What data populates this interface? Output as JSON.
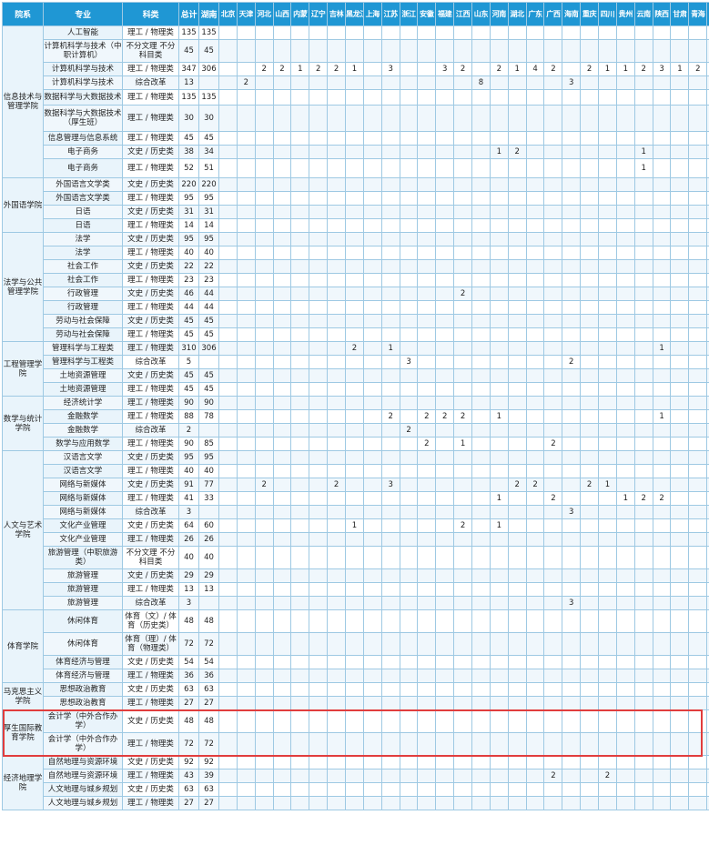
{
  "headers": {
    "college": "院系",
    "major": "专业",
    "subject": "科类",
    "total": "总计",
    "hunan": "湖南",
    "provinces": [
      "北京",
      "天津",
      "河北",
      "山西",
      "内蒙",
      "辽宁",
      "吉林",
      "黑龙江",
      "上海",
      "江苏",
      "浙江",
      "安徽",
      "福建",
      "江西",
      "山东",
      "河南",
      "湖北",
      "广东",
      "广西",
      "海南",
      "重庆",
      "四川",
      "贵州",
      "云南",
      "陕西",
      "甘肃",
      "青海",
      "宁夏"
    ]
  },
  "groups": [
    {
      "college": "信息技术与管理学院",
      "rows": [
        {
          "major": "人工智能",
          "subject": "理工 / 物理类",
          "total": "135",
          "hunan": "135",
          "h": 15,
          "p": {}
        },
        {
          "major": "计算机科学与技术（中职计算机）",
          "subject": "不分文理 不分科目类",
          "total": "45",
          "hunan": "45",
          "h": 25,
          "p": {}
        },
        {
          "major": "计算机科学与技术",
          "subject": "理工 / 物理类",
          "total": "347",
          "hunan": "306",
          "h": 15,
          "p": {
            "2": "2",
            "3": "2",
            "4": "1",
            "5": "2",
            "6": "2",
            "7": "1",
            "9": "3",
            "12": "3",
            "13": "2",
            "15": "2",
            "16": "1",
            "17": "4",
            "18": "2",
            "20": "2",
            "21": "1",
            "22": "1",
            "23": "2",
            "24": "3",
            "25": "1",
            "26": "2",
            "27": "2"
          }
        },
        {
          "major": "计算机科学与技术",
          "subject": "综合改革",
          "total": "13",
          "hunan": "",
          "h": 15,
          "p": {
            "1": "2",
            "14": "8",
            "19": "3"
          }
        },
        {
          "major": "数据科学与大数据技术",
          "subject": "理工 / 物理类",
          "total": "135",
          "hunan": "135",
          "h": 17,
          "p": {}
        },
        {
          "major": "数据科学与大数据技术（厚生班）",
          "subject": "理工 / 物理类",
          "total": "30",
          "hunan": "30",
          "h": 29,
          "p": {}
        },
        {
          "major": "信息管理与信息系统",
          "subject": "理工 / 物理类",
          "total": "45",
          "hunan": "45",
          "h": 15,
          "p": {}
        },
        {
          "major": "电子商务",
          "subject": "文史 / 历史类",
          "total": "38",
          "hunan": "34",
          "h": 15,
          "p": {
            "15": "1",
            "16": "2",
            "23": "1"
          }
        },
        {
          "major": "电子商务",
          "subject": "理工 / 物理类",
          "total": "52",
          "hunan": "51",
          "h": 21,
          "p": {
            "23": "1"
          }
        }
      ]
    },
    {
      "college": "外国语学院",
      "rows": [
        {
          "major": "外国语言文学类",
          "subject": "文史 / 历史类",
          "total": "220",
          "hunan": "220",
          "h": 15,
          "p": {}
        },
        {
          "major": "外国语言文学类",
          "subject": "理工 / 物理类",
          "total": "95",
          "hunan": "95",
          "h": 15,
          "p": {}
        },
        {
          "major": "日语",
          "subject": "文史 / 历史类",
          "total": "31",
          "hunan": "31",
          "h": 15,
          "p": {}
        },
        {
          "major": "日语",
          "subject": "理工 / 物理类",
          "total": "14",
          "hunan": "14",
          "h": 15,
          "p": {}
        }
      ]
    },
    {
      "college": "法学与公共管理学院",
      "rows": [
        {
          "major": "法学",
          "subject": "文史 / 历史类",
          "total": "95",
          "hunan": "95",
          "h": 15,
          "p": {}
        },
        {
          "major": "法学",
          "subject": "理工 / 物理类",
          "total": "40",
          "hunan": "40",
          "h": 15,
          "p": {}
        },
        {
          "major": "社会工作",
          "subject": "文史 / 历史类",
          "total": "22",
          "hunan": "22",
          "h": 15,
          "p": {}
        },
        {
          "major": "社会工作",
          "subject": "理工 / 物理类",
          "total": "23",
          "hunan": "23",
          "h": 15,
          "p": {}
        },
        {
          "major": "行政管理",
          "subject": "文史 / 历史类",
          "total": "46",
          "hunan": "44",
          "h": 15,
          "p": {
            "13": "2"
          }
        },
        {
          "major": "行政管理",
          "subject": "理工 / 物理类",
          "total": "44",
          "hunan": "44",
          "h": 15,
          "p": {}
        },
        {
          "major": "劳动与社会保障",
          "subject": "文史 / 历史类",
          "total": "45",
          "hunan": "45",
          "h": 15,
          "p": {}
        },
        {
          "major": "劳动与社会保障",
          "subject": "理工 / 物理类",
          "total": "45",
          "hunan": "45",
          "h": 15,
          "p": {}
        }
      ]
    },
    {
      "college": "工程管理学院",
      "rows": [
        {
          "major": "管理科学与工程类",
          "subject": "理工 / 物理类",
          "total": "310",
          "hunan": "306",
          "h": 15,
          "p": {
            "7": "2",
            "9": "1",
            "24": "1"
          }
        },
        {
          "major": "管理科学与工程类",
          "subject": "综合改革",
          "total": "5",
          "hunan": "",
          "h": 15,
          "p": {
            "10": "3",
            "19": "2"
          }
        },
        {
          "major": "土地资源管理",
          "subject": "文史 / 历史类",
          "total": "45",
          "hunan": "45",
          "h": 15,
          "p": {}
        },
        {
          "major": "土地资源管理",
          "subject": "理工 / 物理类",
          "total": "45",
          "hunan": "45",
          "h": 15,
          "p": {}
        }
      ]
    },
    {
      "college": "数学与统计学院",
      "rows": [
        {
          "major": "经济统计学",
          "subject": "理工 / 物理类",
          "total": "90",
          "hunan": "90",
          "h": 15,
          "p": {}
        },
        {
          "major": "金融数学",
          "subject": "理工 / 物理类",
          "total": "88",
          "hunan": "78",
          "h": 15,
          "p": {
            "9": "2",
            "11": "2",
            "12": "2",
            "13": "2",
            "15": "1",
            "24": "1"
          }
        },
        {
          "major": "金融数学",
          "subject": "综合改革",
          "total": "2",
          "hunan": "",
          "h": 15,
          "p": {
            "10": "2"
          }
        },
        {
          "major": "数学与应用数学",
          "subject": "理工 / 物理类",
          "total": "90",
          "hunan": "85",
          "h": 15,
          "p": {
            "11": "2",
            "13": "1",
            "18": "2"
          }
        }
      ]
    },
    {
      "college": "人文与艺术学院",
      "rows": [
        {
          "major": "汉语言文学",
          "subject": "文史 / 历史类",
          "total": "95",
          "hunan": "95",
          "h": 15,
          "p": {}
        },
        {
          "major": "汉语言文学",
          "subject": "理工 / 物理类",
          "total": "40",
          "hunan": "40",
          "h": 15,
          "p": {}
        },
        {
          "major": "网络与新媒体",
          "subject": "文史 / 历史类",
          "total": "91",
          "hunan": "77",
          "h": 15,
          "p": {
            "2": "2",
            "6": "2",
            "9": "3",
            "16": "2",
            "17": "2",
            "20": "2",
            "21": "1"
          }
        },
        {
          "major": "网络与新媒体",
          "subject": "理工 / 物理类",
          "total": "41",
          "hunan": "33",
          "h": 15,
          "p": {
            "15": "1",
            "18": "2",
            "22": "1",
            "23": "2",
            "24": "2"
          }
        },
        {
          "major": "网络与新媒体",
          "subject": "综合改革",
          "total": "3",
          "hunan": "",
          "h": 15,
          "p": {
            "19": "3"
          }
        },
        {
          "major": "文化产业管理",
          "subject": "文史 / 历史类",
          "total": "64",
          "hunan": "60",
          "h": 15,
          "p": {
            "7": "1",
            "13": "2",
            "15": "1"
          }
        },
        {
          "major": "文化产业管理",
          "subject": "理工 / 物理类",
          "total": "26",
          "hunan": "26",
          "h": 15,
          "p": {}
        },
        {
          "major": "旅游管理（中职旅游类）",
          "subject": "不分文理 不分科目类",
          "total": "40",
          "hunan": "40",
          "h": 25,
          "p": {}
        },
        {
          "major": "旅游管理",
          "subject": "文史 / 历史类",
          "total": "29",
          "hunan": "29",
          "h": 15,
          "p": {}
        },
        {
          "major": "旅游管理",
          "subject": "理工 / 物理类",
          "total": "13",
          "hunan": "13",
          "h": 15,
          "p": {}
        },
        {
          "major": "旅游管理",
          "subject": "综合改革",
          "total": "3",
          "hunan": "",
          "h": 15,
          "p": {
            "19": "3"
          }
        }
      ]
    },
    {
      "college": "体育学院",
      "rows": [
        {
          "major": "休闲体育",
          "subject": "体育（文）/ 体育（历史类）",
          "total": "48",
          "hunan": "48",
          "h": 25,
          "p": {}
        },
        {
          "major": "休闲体育",
          "subject": "体育（理）/ 体育（物理类）",
          "total": "72",
          "hunan": "72",
          "h": 25,
          "p": {}
        },
        {
          "major": "体育经济与管理",
          "subject": "文史 / 历史类",
          "total": "54",
          "hunan": "54",
          "h": 15,
          "p": {}
        },
        {
          "major": "体育经济与管理",
          "subject": "理工 / 物理类",
          "total": "36",
          "hunan": "36",
          "h": 15,
          "p": {}
        }
      ]
    },
    {
      "college": "马克思主义学院",
      "rows": [
        {
          "major": "思想政治教育",
          "subject": "文史 / 历史类",
          "total": "63",
          "hunan": "63",
          "h": 15,
          "p": {}
        },
        {
          "major": "思想政治教育",
          "subject": "理工 / 物理类",
          "total": "27",
          "hunan": "27",
          "h": 15,
          "p": {}
        }
      ]
    },
    {
      "college": "厚生国际教育学院",
      "rows": [
        {
          "major": "会计学（中外合作办学）",
          "subject": "文史 / 历史类",
          "total": "48",
          "hunan": "48",
          "h": 25,
          "p": {}
        },
        {
          "major": "会计学（中外合作办学）",
          "subject": "理工 / 物理类",
          "total": "72",
          "hunan": "72",
          "h": 25,
          "p": {}
        }
      ]
    },
    {
      "college": "经济地理学院",
      "rows": [
        {
          "major": "自然地理与资源环境",
          "subject": "文史 / 历史类",
          "total": "92",
          "hunan": "92",
          "h": 15,
          "p": {}
        },
        {
          "major": "自然地理与资源环境",
          "subject": "理工 / 物理类",
          "total": "43",
          "hunan": "39",
          "h": 15,
          "p": {
            "18": "2",
            "21": "2"
          }
        },
        {
          "major": "人文地理与城乡规划",
          "subject": "文史 / 历史类",
          "total": "63",
          "hunan": "63",
          "h": 15,
          "p": {}
        },
        {
          "major": "人文地理与城乡规划",
          "subject": "理工 / 物理类",
          "total": "27",
          "hunan": "27",
          "h": 15,
          "p": {}
        }
      ]
    }
  ]
}
